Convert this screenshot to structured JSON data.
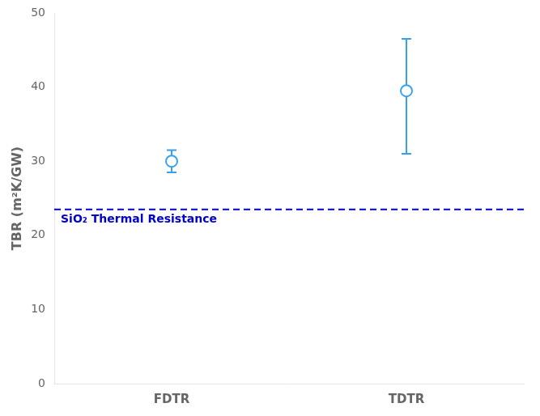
{
  "chart_data": {
    "type": "scatter",
    "categories": [
      "FDTR",
      "TDTR"
    ],
    "values": [
      30.0,
      39.5
    ],
    "error_lower": [
      1.5,
      8.5
    ],
    "error_upper": [
      1.5,
      7.0
    ],
    "marker": "circle",
    "ylabel": "TBR (m²K/GW)",
    "ylim": [
      0,
      50
    ],
    "yticks": [
      0,
      10,
      20,
      30,
      40,
      50
    ],
    "grid": false,
    "reference_line": {
      "y": 23.5,
      "label": "SiO₂ Thermal Resistance",
      "color": "#0000CC",
      "line_style": "dashed"
    }
  }
}
